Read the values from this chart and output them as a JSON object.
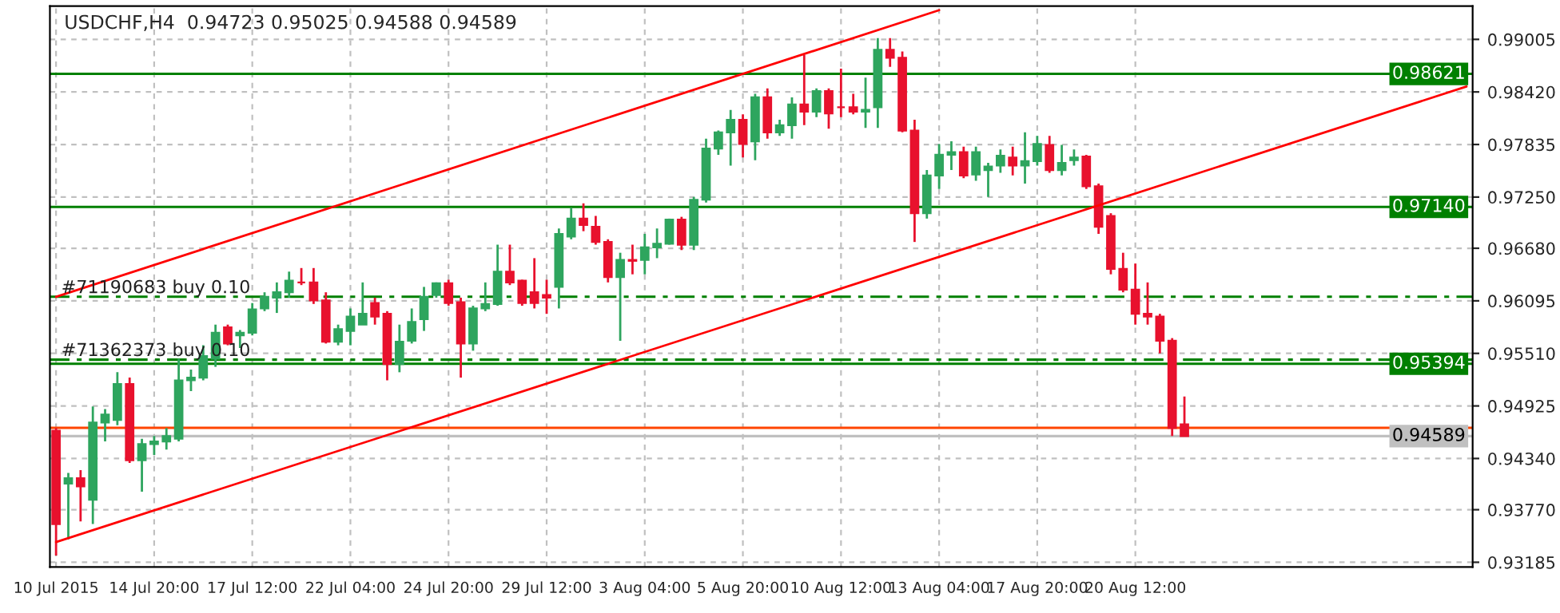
{
  "chart_data": {
    "type": "candlestick",
    "title": "USDCHF,H4  0.94723 0.95025 0.94588 0.94589",
    "categories": [
      "10 Jul 2015",
      null,
      null,
      null,
      null,
      null,
      null,
      null,
      "14 Jul 20:00",
      null,
      null,
      null,
      null,
      null,
      null,
      null,
      "17 Jul 12:00",
      null,
      null,
      null,
      null,
      null,
      null,
      null,
      "22 Jul 04:00",
      null,
      null,
      null,
      null,
      null,
      null,
      null,
      "24 Jul 20:00",
      null,
      null,
      null,
      null,
      null,
      null,
      null,
      "29 Jul 12:00",
      null,
      null,
      null,
      null,
      null,
      null,
      null,
      "3 Aug 04:00",
      null,
      null,
      null,
      null,
      null,
      null,
      null,
      "5 Aug 20:00",
      null,
      null,
      null,
      null,
      null,
      null,
      null,
      "10 Aug 12:00",
      null,
      null,
      null,
      null,
      null,
      null,
      null,
      "13 Aug 04:00",
      null,
      null,
      null,
      null,
      null,
      null,
      null,
      "17 Aug 20:00",
      null,
      null,
      null,
      null,
      null,
      null,
      null,
      "20 Aug 12:00",
      null,
      null,
      null,
      null,
      null,
      null,
      null,
      null,
      null,
      null,
      null,
      null,
      null,
      null,
      null,
      null,
      null,
      null,
      null,
      null,
      null,
      null,
      null,
      null,
      null,
      null,
      null
    ],
    "ohlc": [
      [
        0.9465,
        0.9468,
        0.9326,
        0.9361
      ],
      [
        0.9406,
        0.9418,
        0.9344,
        0.9412
      ],
      [
        0.9412,
        0.9421,
        0.9364,
        0.9403
      ],
      [
        0.9388,
        0.9492,
        0.9361,
        0.9474
      ],
      [
        0.9474,
        0.9489,
        0.9453,
        0.9483
      ],
      [
        0.9477,
        0.953,
        0.9471,
        0.9517
      ],
      [
        0.9517,
        0.9524,
        0.9429,
        0.9432
      ],
      [
        0.9432,
        0.9456,
        0.9397,
        0.945
      ],
      [
        0.945,
        0.9459,
        0.9438,
        0.9453
      ],
      [
        0.9453,
        0.9468,
        0.9444,
        0.9459
      ],
      [
        0.9456,
        0.9545,
        0.9453,
        0.9521
      ],
      [
        0.9521,
        0.9533,
        0.9509,
        0.9524
      ],
      [
        0.9524,
        0.956,
        0.9521,
        0.9548
      ],
      [
        0.9545,
        0.9583,
        0.9536,
        0.9574
      ],
      [
        0.958,
        0.9583,
        0.956,
        0.9562
      ],
      [
        0.9571,
        0.9577,
        0.9557,
        0.9574
      ],
      [
        0.9574,
        0.9607,
        0.9571,
        0.96
      ],
      [
        0.9601,
        0.9619,
        0.9598,
        0.9614
      ],
      [
        0.9613,
        0.963,
        0.9596,
        0.9619
      ],
      [
        0.9619,
        0.9642,
        0.9613,
        0.9632
      ],
      [
        0.963,
        0.9646,
        0.9627,
        0.963
      ],
      [
        0.963,
        0.9646,
        0.9606,
        0.961
      ],
      [
        0.961,
        0.9619,
        0.9562,
        0.9564
      ],
      [
        0.9564,
        0.9583,
        0.956,
        0.9578
      ],
      [
        0.9576,
        0.9601,
        0.956,
        0.9592
      ],
      [
        0.9583,
        0.963,
        0.9583,
        0.9595
      ],
      [
        0.9607,
        0.9613,
        0.9583,
        0.9592
      ],
      [
        0.9595,
        0.9598,
        0.9521,
        0.9539
      ],
      [
        0.9539,
        0.9583,
        0.953,
        0.9564
      ],
      [
        0.9565,
        0.9601,
        0.9562,
        0.9586
      ],
      [
        0.9589,
        0.9625,
        0.9576,
        0.9614
      ],
      [
        0.9616,
        0.963,
        0.9613,
        0.9629
      ],
      [
        0.9629,
        0.9633,
        0.9604,
        0.9607
      ],
      [
        0.9608,
        0.9613,
        0.9524,
        0.9562
      ],
      [
        0.9562,
        0.9604,
        0.9554,
        0.9601
      ],
      [
        0.9601,
        0.963,
        0.9598,
        0.9606
      ],
      [
        0.9606,
        0.9672,
        0.9604,
        0.9642
      ],
      [
        0.9642,
        0.9672,
        0.9627,
        0.963
      ],
      [
        0.9632,
        0.9633,
        0.9604,
        0.9607
      ],
      [
        0.9619,
        0.9657,
        0.9601,
        0.9607
      ],
      [
        0.9616,
        0.9633,
        0.9595,
        0.9613
      ],
      [
        0.9625,
        0.969,
        0.9601,
        0.9684
      ],
      [
        0.9681,
        0.9713,
        0.9678,
        0.9701
      ],
      [
        0.9701,
        0.9718,
        0.9687,
        0.9694
      ],
      [
        0.9692,
        0.9704,
        0.9672,
        0.9675
      ],
      [
        0.9675,
        0.9678,
        0.963,
        0.9636
      ],
      [
        0.9636,
        0.9663,
        0.9565,
        0.9655
      ],
      [
        0.9655,
        0.9672,
        0.9639,
        0.9654
      ],
      [
        0.9655,
        0.9684,
        0.9639,
        0.9669
      ],
      [
        0.9669,
        0.969,
        0.9657,
        0.9673
      ],
      [
        0.9673,
        0.9701,
        0.9672,
        0.97
      ],
      [
        0.97,
        0.9703,
        0.9666,
        0.9672
      ],
      [
        0.9672,
        0.9725,
        0.9666,
        0.9722
      ],
      [
        0.9722,
        0.979,
        0.9719,
        0.9779
      ],
      [
        0.9779,
        0.9799,
        0.9772,
        0.9797
      ],
      [
        0.9797,
        0.9822,
        0.976,
        0.9811
      ],
      [
        0.9811,
        0.9817,
        0.9769,
        0.9784
      ],
      [
        0.9787,
        0.984,
        0.9766,
        0.9836
      ],
      [
        0.9836,
        0.9846,
        0.979,
        0.9797
      ],
      [
        0.9797,
        0.9811,
        0.9793,
        0.9805
      ],
      [
        0.9805,
        0.9836,
        0.979,
        0.9828
      ],
      [
        0.9828,
        0.9883,
        0.9805,
        0.982
      ],
      [
        0.982,
        0.9846,
        0.9814,
        0.9843
      ],
      [
        0.9843,
        0.9846,
        0.9801,
        0.9818
      ],
      [
        0.9825,
        0.9868,
        0.9814,
        0.9825
      ],
      [
        0.9825,
        0.984,
        0.9817,
        0.982
      ],
      [
        0.982,
        0.9858,
        0.9802,
        0.9822
      ],
      [
        0.9825,
        0.9902,
        0.9802,
        0.9889
      ],
      [
        0.9889,
        0.9902,
        0.987,
        0.988
      ],
      [
        0.988,
        0.9887,
        0.9797,
        0.9799
      ],
      [
        0.9799,
        0.9811,
        0.9675,
        0.9707
      ],
      [
        0.9707,
        0.9755,
        0.9701,
        0.9749
      ],
      [
        0.9749,
        0.9784,
        0.9734,
        0.9772
      ],
      [
        0.9772,
        0.9787,
        0.9755,
        0.9775
      ],
      [
        0.9775,
        0.9781,
        0.9746,
        0.9749
      ],
      [
        0.975,
        0.9781,
        0.9743,
        0.9775
      ],
      [
        0.9755,
        0.9763,
        0.9725,
        0.9759
      ],
      [
        0.976,
        0.9778,
        0.9752,
        0.9771
      ],
      [
        0.9769,
        0.9781,
        0.9749,
        0.976
      ],
      [
        0.976,
        0.9797,
        0.974,
        0.9765
      ],
      [
        0.9765,
        0.9793,
        0.976,
        0.9784
      ],
      [
        0.9783,
        0.9793,
        0.9752,
        0.9755
      ],
      [
        0.9755,
        0.9783,
        0.9749,
        0.9763
      ],
      [
        0.9766,
        0.9778,
        0.976,
        0.9769
      ],
      [
        0.977,
        0.9772,
        0.9734,
        0.9737
      ],
      [
        0.9737,
        0.974,
        0.9684,
        0.9692
      ],
      [
        0.9704,
        0.9707,
        0.9639,
        0.9645
      ],
      [
        0.9645,
        0.9663,
        0.9619,
        0.9622
      ],
      [
        0.9622,
        0.9651,
        0.9583,
        0.9595
      ],
      [
        0.9595,
        0.963,
        0.9583,
        0.9592
      ],
      [
        0.9592,
        0.9595,
        0.9551,
        0.9565
      ],
      [
        0.9565,
        0.9568,
        0.9459,
        0.9468
      ],
      [
        0.9472,
        0.9503,
        0.9459,
        0.9459
      ],
      null,
      null,
      null,
      null,
      null,
      null,
      null,
      null,
      null,
      null,
      null,
      null,
      null,
      null,
      null,
      null,
      null,
      null,
      null,
      null,
      null,
      null,
      null
    ],
    "colors": [
      "#e8112d",
      "#2ea55e",
      "#e8112d",
      "#2ea55e",
      "#2ea55e",
      "#2ea55e",
      "#e8112d",
      "#2ea55e",
      "#2ea55e",
      "#2ea55e",
      "#2ea55e",
      "#2ea55e",
      "#2ea55e",
      "#2ea55e",
      "#e8112d",
      "#2ea55e",
      "#2ea55e",
      "#2ea55e",
      "#2ea55e",
      "#2ea55e",
      "#e8112d",
      "#e8112d",
      "#e8112d",
      "#2ea55e",
      "#2ea55e",
      "#2ea55e",
      "#e8112d",
      "#e8112d",
      "#2ea55e",
      "#2ea55e",
      "#2ea55e",
      "#2ea55e",
      "#e8112d",
      "#e8112d",
      "#2ea55e",
      "#2ea55e",
      "#2ea55e",
      "#e8112d",
      "#e8112d",
      "#e8112d",
      "#e8112d",
      "#2ea55e",
      "#2ea55e",
      "#e8112d",
      "#e8112d",
      "#e8112d",
      "#2ea55e",
      "#e8112d",
      "#2ea55e",
      "#2ea55e",
      "#2ea55e",
      "#e8112d",
      "#2ea55e",
      "#2ea55e",
      "#2ea55e",
      "#2ea55e",
      "#e8112d",
      "#2ea55e",
      "#e8112d",
      "#2ea55e",
      "#2ea55e",
      "#e8112d",
      "#2ea55e",
      "#e8112d",
      "#e8112d",
      "#e8112d",
      "#2ea55e",
      "#2ea55e",
      "#e8112d",
      "#e8112d",
      "#e8112d",
      "#2ea55e",
      "#2ea55e",
      "#2ea55e",
      "#e8112d",
      "#2ea55e",
      "#2ea55e",
      "#2ea55e",
      "#e8112d",
      "#2ea55e",
      "#2ea55e",
      "#e8112d",
      "#2ea55e",
      "#2ea55e",
      "#e8112d",
      "#e8112d",
      "#e8112d",
      "#e8112d",
      "#e8112d",
      "#e8112d",
      "#e8112d",
      "#e8112d",
      "#e8112d",
      null,
      null,
      null,
      null,
      null,
      null,
      null,
      null,
      null,
      null,
      null,
      null,
      null,
      null,
      null,
      null,
      null,
      null,
      null,
      null,
      null,
      null,
      null
    ],
    "series": [
      {
        "type": "line",
        "color": "#ff0000",
        "values": [
          0.9614,
          null,
          null,
          null,
          null,
          null,
          null,
          null,
          null,
          null,
          null,
          null,
          null,
          null,
          null,
          null,
          null,
          null,
          null,
          null,
          null,
          null,
          null,
          null,
          null,
          null,
          null,
          null,
          null,
          null,
          null,
          null,
          null,
          null,
          null,
          null,
          null,
          null,
          null,
          null,
          null,
          null,
          null,
          null,
          null,
          null,
          null,
          null,
          null,
          null,
          null,
          null,
          null,
          null,
          null,
          null,
          null,
          null,
          null,
          null,
          null,
          null,
          null,
          null,
          null,
          null,
          null,
          null,
          null,
          null,
          null,
          null,
          0.9933,
          null,
          null,
          null,
          null,
          null,
          null,
          null,
          null,
          null,
          null,
          null,
          null,
          null,
          null,
          null,
          null,
          null,
          null,
          null,
          null,
          null,
          null,
          null,
          null,
          null,
          null,
          null,
          null,
          null,
          null,
          null,
          null,
          null,
          null,
          null,
          null,
          null,
          null,
          null,
          null,
          null,
          null,
          null
        ]
      },
      {
        "type": "line",
        "color": "#ff0000",
        "values": [
          0.9341,
          null,
          null,
          null,
          null,
          null,
          null,
          null,
          null,
          null,
          null,
          null,
          null,
          null,
          null,
          null,
          null,
          null,
          null,
          null,
          null,
          null,
          null,
          null,
          null,
          null,
          null,
          null,
          null,
          null,
          null,
          null,
          null,
          null,
          null,
          null,
          null,
          null,
          null,
          null,
          null,
          null,
          null,
          null,
          null,
          null,
          null,
          null,
          null,
          null,
          null,
          null,
          null,
          null,
          null,
          null,
          null,
          null,
          null,
          null,
          null,
          null,
          null,
          null,
          null,
          null,
          null,
          null,
          null,
          null,
          null,
          null,
          null,
          null,
          null,
          null,
          null,
          null,
          null,
          null,
          null,
          null,
          null,
          null,
          null,
          null,
          null,
          null,
          null,
          null,
          null,
          null,
          null,
          null,
          null,
          null,
          null,
          null,
          null,
          null,
          null,
          null,
          null,
          null,
          null,
          null,
          null,
          null,
          null,
          null,
          null,
          null,
          null,
          null,
          null,
          0.9848
        ]
      }
    ],
    "ylim": [
      0.93132,
      0.99375
    ],
    "yticks": [
      0.93185,
      {
        "value": 0.9377,
        "label": "0.93770"
      },
      {
        "value": 0.9434,
        "label": "0.94340"
      },
      0.94925,
      {
        "value": 0.9551,
        "label": "0.95510"
      },
      0.96095,
      {
        "value": 0.9668,
        "label": "0.96680"
      },
      {
        "value": 0.9725,
        "label": "0.97250"
      },
      0.97835,
      {
        "value": 0.9842,
        "label": "0.98420"
      },
      0.99005
    ],
    "grid": true,
    "ref_lines": [
      {
        "axis": "y",
        "value": 0.98621,
        "label": "0.98621",
        "color": "#008000",
        "line_style": "solid"
      },
      {
        "axis": "y",
        "value": 0.9714,
        "label": "0.97140",
        "color": "#008000",
        "line_style": "solid"
      },
      {
        "axis": "y",
        "value": 0.95394,
        "label": "0.95394",
        "color": "#008000",
        "line_style": "solid"
      },
      {
        "axis": "y",
        "value": 0.9614,
        "label": "#71190683 buy 0.10",
        "color": "#008000",
        "line_style": "dashed"
      },
      {
        "axis": "y",
        "value": 0.9544,
        "label": "#71362373 buy 0.10",
        "color": "#008000",
        "line_style": "dashed"
      },
      {
        "axis": "y",
        "value": 0.94681,
        "label": null,
        "color": "#ff4500",
        "line_style": "solid"
      },
      {
        "axis": "y",
        "value": 0.94589,
        "label": "0.94589",
        "color": "#c0c0c0",
        "line_style": "solid"
      }
    ]
  }
}
